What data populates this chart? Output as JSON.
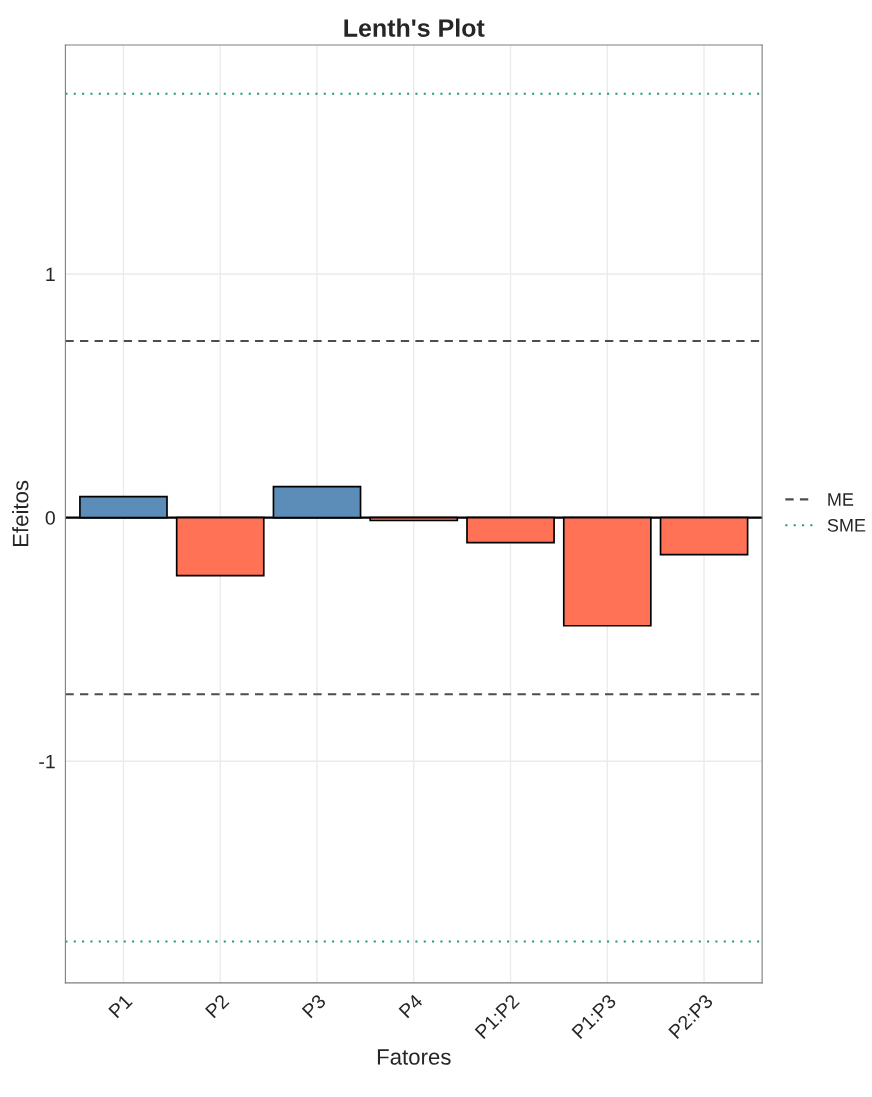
{
  "chart_data": {
    "type": "bar",
    "title": "Lenth's Plot",
    "xlabel": "Fatores",
    "ylabel": "Efeitos",
    "categories": [
      "P1",
      "P2",
      "P3",
      "P4",
      "P1:P2",
      "P1:P3",
      "P2:P3"
    ],
    "values": [
      0.086,
      -0.238,
      0.127,
      -0.012,
      -0.103,
      -0.444,
      -0.152
    ],
    "colors": [
      "#5b8db8",
      "#ff7256",
      "#5b8db8",
      "#ff7256",
      "#ff7256",
      "#ff7256",
      "#ff7256"
    ],
    "ylim": [
      -1.91,
      1.94
    ],
    "yticks": [
      -1,
      0,
      1
    ],
    "grid": true,
    "legend": "right",
    "ref_lines": [
      {
        "axis": "y",
        "value": 0,
        "color": "#000000",
        "line_style": "solid"
      },
      {
        "axis": "y",
        "value": 0.725,
        "label": "ME",
        "color": "#4d4d4d",
        "line_style": "dashed"
      },
      {
        "axis": "y",
        "value": -0.725,
        "color": "#4d4d4d",
        "line_style": "dashed"
      },
      {
        "axis": "y",
        "value": 1.74,
        "label": "SME",
        "color": "#1b9e77",
        "line_style": "dotted"
      },
      {
        "axis": "y",
        "value": -1.74,
        "color": "#1b9e77",
        "line_style": "dotted"
      }
    ]
  }
}
